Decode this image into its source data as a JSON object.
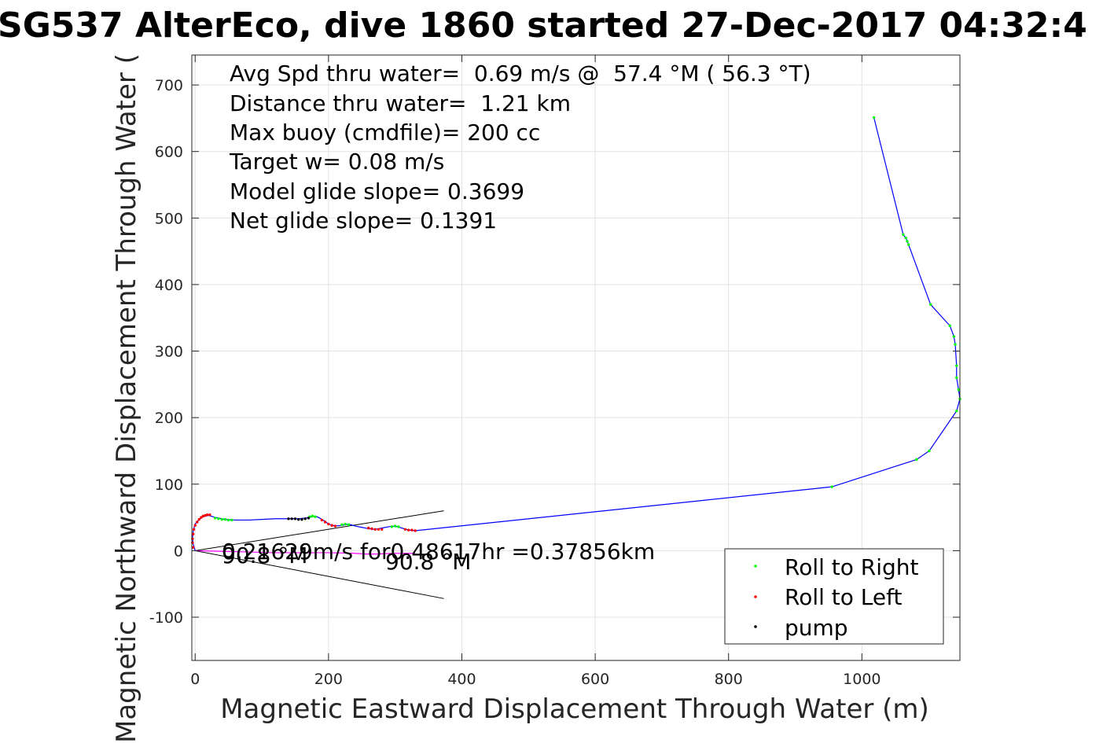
{
  "chart_data": {
    "type": "scatter",
    "title": "SG537 AlterEco, dive 1860 started 27-Dec-2017 04:32:4",
    "xlabel": "Magnetic Eastward Displacement Through Water (m)",
    "ylabel": "Magnetic Northward Displacement Through Water (",
    "xlim": [
      -5,
      1147
    ],
    "ylim": [
      -165,
      745
    ],
    "xticks": [
      0,
      200,
      400,
      600,
      800,
      1000
    ],
    "yticks": [
      -100,
      0,
      100,
      200,
      300,
      400,
      500,
      600,
      700
    ],
    "xtick_labels": [
      "0",
      "200",
      "400",
      "600",
      "800",
      "1000"
    ],
    "ytick_labels": [
      "-100",
      "0",
      "100",
      "200",
      "300",
      "400",
      "500",
      "600",
      "700"
    ],
    "grid": true,
    "legend_position": "bottom-right",
    "annotations": [
      "Avg Spd thru water=  0.69 m/s @  57.4 °M ( 56.3 °T)",
      "Distance thru water=  1.21 km",
      "Max buoy (cmdfile)= 200 cc",
      "Target w= 0.08 m/s",
      "Model glide slope= 0.3699",
      "Net glide slope= 0.1391"
    ],
    "current_label": "0.21629m/s for0.48617hr =0.37856km",
    "heading_labels": [
      "90.8 °M",
      "90.8 °M"
    ],
    "wedge": {
      "origin": [
        0,
        0
      ],
      "upper_end": [
        373,
        60
      ],
      "lower_end": [
        373,
        -72
      ]
    },
    "series": [
      {
        "name": "",
        "style": "line",
        "color": "#0000ff",
        "x": [
          0,
          -3,
          -4,
          -3,
          0,
          5,
          12,
          20,
          30,
          45,
          60,
          80,
          100,
          120,
          140,
          155,
          165,
          175,
          180,
          185,
          190,
          195,
          200,
          210,
          220,
          230,
          240,
          250,
          260,
          270,
          280,
          290,
          300,
          310,
          320,
          330,
          955,
          1082,
          1101,
          1142,
          1147,
          1145,
          1142,
          1142,
          1140,
          1138,
          1132,
          1103,
          1070,
          1068,
          1066,
          1062,
          1018
        ],
        "y": [
          0,
          10,
          20,
          30,
          40,
          46,
          51,
          53,
          50,
          47,
          46,
          46,
          47,
          48,
          48,
          48,
          49,
          51,
          52,
          50,
          47,
          44,
          40,
          37,
          38,
          40,
          37,
          35,
          33,
          32,
          34,
          36,
          37,
          34,
          31,
          30,
          96,
          137,
          150,
          210,
          228,
          242,
          260,
          278,
          310,
          322,
          338,
          370,
          460,
          465,
          470,
          475,
          651
        ]
      },
      {
        "name": "",
        "style": "line",
        "color": "#ff00ff",
        "x": [
          0,
          40,
          80,
          120,
          160,
          200,
          240,
          255,
          270,
          300,
          330
        ],
        "y": [
          0,
          -1,
          -2,
          -3,
          -3,
          -3,
          -4,
          -5,
          -5,
          -4,
          -4
        ]
      },
      {
        "name": "Roll to Right",
        "style": "dots",
        "color": "#00ff00",
        "x": [
          30,
          35,
          40,
          45,
          50,
          55,
          172,
          176,
          180,
          220,
          225,
          230,
          295,
          300,
          305,
          955,
          1082,
          1101,
          1142,
          1147,
          1145,
          1142,
          1142,
          1140,
          1138,
          1132,
          1103,
          1070,
          1068,
          1066,
          1062,
          1018
        ],
        "y": [
          49,
          48,
          47,
          47,
          46,
          46,
          51,
          52,
          51,
          39,
          40,
          39,
          36,
          37,
          36,
          96,
          137,
          150,
          210,
          228,
          242,
          260,
          278,
          310,
          322,
          338,
          370,
          460,
          465,
          470,
          475,
          651
        ]
      },
      {
        "name": "Roll to Left",
        "style": "dots",
        "color": "#ff0000",
        "x": [
          -3,
          -4,
          -4,
          -3,
          -2,
          0,
          3,
          6,
          9,
          12,
          15,
          18,
          22,
          190,
          195,
          200,
          205,
          210,
          260,
          265,
          270,
          275,
          280,
          315,
          320,
          325,
          330
        ],
        "y": [
          5,
          12,
          18,
          25,
          32,
          38,
          43,
          47,
          50,
          52,
          53,
          54,
          54,
          46,
          43,
          40,
          38,
          37,
          34,
          33,
          32,
          32,
          32,
          32,
          31,
          31,
          30
        ]
      },
      {
        "name": "pump",
        "style": "dots",
        "color": "#000000",
        "x": [
          140,
          145,
          150,
          155,
          160,
          165,
          170
        ],
        "y": [
          48,
          48,
          48,
          47,
          47,
          48,
          49
        ]
      }
    ]
  }
}
